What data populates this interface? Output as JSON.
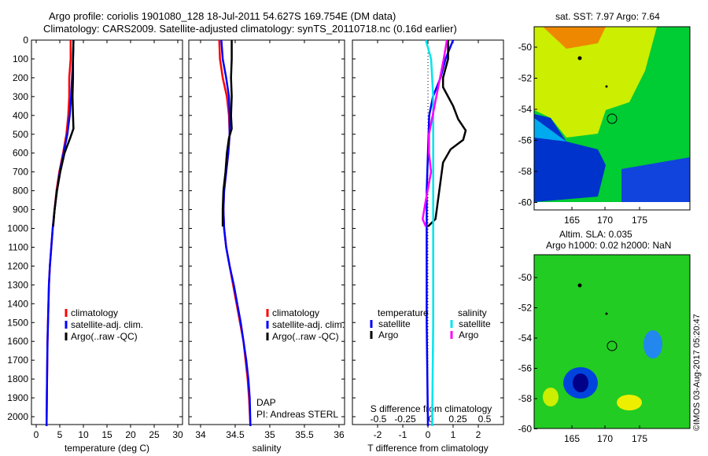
{
  "title_line1": "Argo profile: coriolis 1901080_128 18-Jul-2011 54.627S 169.754E (DM data)",
  "title_line2": "Climatology: CARS2009. Satellite-adjusted climatology: synTS_20110718.nc (0.16d earlier)",
  "colors": {
    "climatology": "#ff0000",
    "satellite": "#0000ff",
    "argo": "#000000",
    "sal_satellite": "#00e5ee",
    "sal_argo": "#ff00ff"
  },
  "chart_data": [
    {
      "type": "line",
      "id": "temperature",
      "xlabel": "temperature (deg C)",
      "ylabel": "",
      "xlim": [
        -1,
        31
      ],
      "ylim": [
        2050,
        0
      ],
      "xticks": [
        "0",
        "5",
        "10",
        "15",
        "20",
        "25",
        "30"
      ],
      "yticks": [
        "0",
        "100",
        "200",
        "300",
        "400",
        "500",
        "600",
        "700",
        "800",
        "900",
        "1000",
        "1100",
        "1200",
        "1300",
        "1400",
        "1500",
        "1600",
        "1700",
        "1800",
        "1900",
        "2000"
      ],
      "legend": [
        "climatology",
        "satellite-adj. clim.",
        "Argo(..raw -QC)"
      ],
      "series": [
        {
          "name": "climatology",
          "color": "#ff0000",
          "points": [
            [
              7.3,
              0
            ],
            [
              7.3,
              100
            ],
            [
              7.0,
              200
            ],
            [
              7.0,
              300
            ],
            [
              6.8,
              400
            ],
            [
              6.4,
              500
            ],
            [
              5.7,
              600
            ],
            [
              4.9,
              700
            ],
            [
              4.3,
              800
            ],
            [
              3.9,
              900
            ],
            [
              3.5,
              1000
            ],
            [
              3.2,
              1100
            ],
            [
              2.9,
              1200
            ],
            [
              2.7,
              1300
            ],
            [
              2.6,
              1400
            ],
            [
              2.5,
              1500
            ],
            [
              2.4,
              1600
            ],
            [
              2.3,
              1800
            ],
            [
              2.2,
              2050
            ]
          ]
        },
        {
          "name": "satellite-adj. clim.",
          "color": "#0000ff",
          "points": [
            [
              7.9,
              0
            ],
            [
              7.8,
              100
            ],
            [
              7.6,
              200
            ],
            [
              7.4,
              300
            ],
            [
              7.1,
              400
            ],
            [
              6.6,
              500
            ],
            [
              5.8,
              600
            ],
            [
              5.0,
              700
            ],
            [
              4.4,
              800
            ],
            [
              3.9,
              900
            ],
            [
              3.5,
              1000
            ],
            [
              3.2,
              1100
            ],
            [
              2.9,
              1200
            ],
            [
              2.7,
              1300
            ],
            [
              2.6,
              1400
            ],
            [
              2.5,
              1500
            ],
            [
              2.4,
              1600
            ],
            [
              2.3,
              1800
            ],
            [
              2.2,
              2050
            ]
          ]
        },
        {
          "name": "Argo(..raw -QC)",
          "color": "#000000",
          "points": [
            [
              7.9,
              0
            ],
            [
              7.8,
              100
            ],
            [
              7.8,
              200
            ],
            [
              7.7,
              300
            ],
            [
              7.8,
              400
            ],
            [
              7.9,
              470
            ],
            [
              7.2,
              520
            ],
            [
              6.0,
              600
            ],
            [
              5.1,
              700
            ],
            [
              4.4,
              800
            ],
            [
              3.9,
              900
            ],
            [
              3.6,
              990
            ]
          ]
        }
      ]
    },
    {
      "type": "line",
      "id": "salinity",
      "xlabel": "salinity",
      "xlim": [
        33.83,
        36.08
      ],
      "ylim": [
        2050,
        0
      ],
      "xticks": [
        "34",
        "34.5",
        "35",
        "35.5",
        "36"
      ],
      "legend": [
        "climatology",
        "satellite-adj. clim.",
        "Argo(..raw -QC)"
      ],
      "annotation": [
        "DAP",
        "PI: Andreas STERL"
      ],
      "series": [
        {
          "name": "climatology",
          "color": "#ff0000",
          "points": [
            [
              34.27,
              0
            ],
            [
              34.28,
              100
            ],
            [
              34.32,
              200
            ],
            [
              34.38,
              300
            ],
            [
              34.41,
              400
            ],
            [
              34.42,
              500
            ],
            [
              34.4,
              600
            ],
            [
              34.37,
              700
            ],
            [
              34.34,
              800
            ],
            [
              34.33,
              900
            ],
            [
              34.34,
              1000
            ],
            [
              34.37,
              1100
            ],
            [
              34.42,
              1200
            ],
            [
              34.47,
              1300
            ],
            [
              34.52,
              1400
            ],
            [
              34.57,
              1500
            ],
            [
              34.62,
              1600
            ],
            [
              34.65,
              1700
            ],
            [
              34.68,
              1800
            ],
            [
              34.7,
              1900
            ],
            [
              34.72,
              2050
            ]
          ]
        },
        {
          "name": "satellite-adj. clim.",
          "color": "#0000ff",
          "points": [
            [
              34.3,
              0
            ],
            [
              34.32,
              100
            ],
            [
              34.37,
              200
            ],
            [
              34.41,
              300
            ],
            [
              34.42,
              400
            ],
            [
              34.42,
              500
            ],
            [
              34.4,
              600
            ],
            [
              34.37,
              700
            ],
            [
              34.34,
              800
            ],
            [
              34.33,
              900
            ],
            [
              34.34,
              1000
            ],
            [
              34.37,
              1100
            ],
            [
              34.42,
              1200
            ],
            [
              34.48,
              1300
            ],
            [
              34.53,
              1400
            ],
            [
              34.58,
              1500
            ],
            [
              34.62,
              1600
            ],
            [
              34.66,
              1700
            ],
            [
              34.69,
              1800
            ],
            [
              34.71,
              1900
            ],
            [
              34.72,
              2050
            ]
          ]
        },
        {
          "name": "Argo(..raw -QC)",
          "color": "#000000",
          "points": [
            [
              34.45,
              0
            ],
            [
              34.45,
              100
            ],
            [
              34.44,
              200
            ],
            [
              34.45,
              300
            ],
            [
              34.44,
              400
            ],
            [
              34.45,
              470
            ],
            [
              34.41,
              520
            ],
            [
              34.38,
              600
            ],
            [
              34.36,
              700
            ],
            [
              34.33,
              800
            ],
            [
              34.32,
              900
            ],
            [
              34.32,
              990
            ]
          ]
        }
      ]
    },
    {
      "type": "line",
      "id": "differences",
      "xlabel": "T difference from climatology",
      "xlabel_top": "S difference from climatology",
      "xlim": [
        -3,
        3
      ],
      "ylim": [
        2050,
        0
      ],
      "xticks": [
        "-2",
        "-1",
        "0",
        "1",
        "2"
      ],
      "xticks_top": [
        "-0.5",
        "-0.25",
        "0",
        "0.25",
        "0.5"
      ],
      "legend_temperature": {
        "title": "temperature",
        "items": [
          "satellite",
          "Argo"
        ]
      },
      "legend_salinity": {
        "title": "salinity",
        "items": [
          "satellite",
          "Argo"
        ]
      },
      "series": [
        {
          "name": "T satellite",
          "color": "#0000ff",
          "points": [
            [
              1.0,
              0
            ],
            [
              0.7,
              100
            ],
            [
              0.5,
              200
            ],
            [
              0.2,
              300
            ],
            [
              0.05,
              400
            ],
            [
              0.0,
              600
            ],
            [
              -0.05,
              800
            ],
            [
              -0.05,
              1000
            ],
            [
              -0.05,
              1500
            ],
            [
              0.0,
              2050
            ]
          ]
        },
        {
          "name": "T Argo",
          "color": "#000000",
          "points": [
            [
              0.8,
              0
            ],
            [
              0.8,
              100
            ],
            [
              0.6,
              200
            ],
            [
              0.6,
              250
            ],
            [
              1.0,
              350
            ],
            [
              1.2,
              420
            ],
            [
              1.5,
              480
            ],
            [
              1.4,
              530
            ],
            [
              0.9,
              580
            ],
            [
              0.6,
              650
            ],
            [
              0.5,
              750
            ],
            [
              0.4,
              850
            ],
            [
              0.3,
              950
            ],
            [
              0.0,
              990
            ]
          ]
        },
        {
          "name": "S satellite",
          "color": "#00e5ee",
          "points": [
            [
              -0.05,
              0
            ],
            [
              0.0,
              100
            ],
            [
              0.02,
              300
            ],
            [
              0.02,
              600
            ],
            [
              0.02,
              1000
            ],
            [
              0.02,
              1500
            ],
            [
              0.01,
              2050
            ]
          ]
        },
        {
          "name": "S Argo",
          "color": "#ff00ff",
          "points": [
            [
              0.15,
              0
            ],
            [
              0.12,
              100
            ],
            [
              0.05,
              300
            ],
            [
              -0.02,
              500
            ],
            [
              -0.02,
              600
            ],
            [
              0.0,
              700
            ],
            [
              -0.05,
              850
            ],
            [
              -0.08,
              950
            ],
            [
              -0.05,
              990
            ]
          ]
        }
      ]
    }
  ],
  "map_sst": {
    "title": "sat. SST: 7.97 Argo: 7.64",
    "yticks": [
      "-50",
      "-52",
      "-54",
      "-56",
      "-58",
      "-60"
    ],
    "xticks": [
      "165",
      "170",
      "175"
    ]
  },
  "map_sla": {
    "title1": "Altim. SLA: 0.035",
    "title2": "Argo h1000: 0.02 h2000: NaN",
    "yticks": [
      "-50",
      "-52",
      "-54",
      "-56",
      "-58",
      "-60"
    ],
    "xticks": [
      "165",
      "170",
      "175"
    ]
  },
  "credit": "©IMOS 03-Aug-2017 05:20:47"
}
